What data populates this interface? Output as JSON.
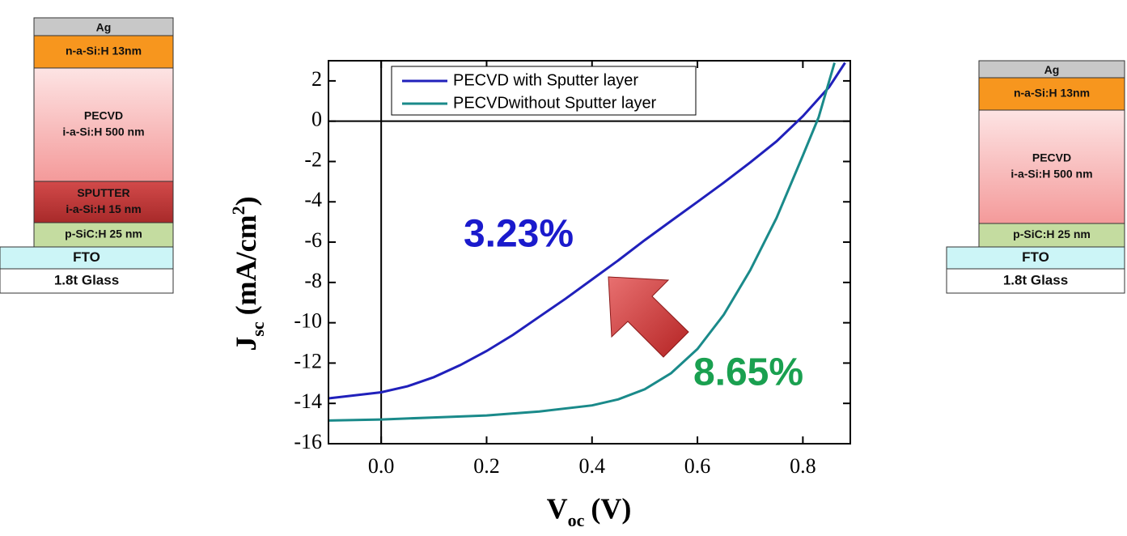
{
  "stacks": [
    {
      "layers": [
        {
          "lines": [
            "Ag"
          ]
        },
        {
          "lines": [
            "n-a-Si:H 13nm"
          ]
        },
        {
          "lines": [
            "PECVD",
            "i-a-Si:H 500 nm"
          ]
        },
        {
          "lines": [
            "SPUTTER",
            "i-a-Si:H  15 nm"
          ]
        },
        {
          "lines": [
            "p-SiC:H 25 nm"
          ]
        },
        {
          "lines": [
            "FTO"
          ]
        },
        {
          "lines": [
            "1.8t Glass"
          ]
        }
      ]
    },
    {
      "layers": [
        {
          "lines": [
            "Ag"
          ]
        },
        {
          "lines": [
            "n-a-Si:H 13nm"
          ]
        },
        {
          "lines": [
            "PECVD",
            "i-a-Si:H 500 nm"
          ]
        },
        {
          "lines": [
            "p-SiC:H 25 nm"
          ]
        },
        {
          "lines": [
            "FTO"
          ]
        },
        {
          "lines": [
            "1.8t Glass"
          ]
        }
      ]
    }
  ],
  "chart_data": {
    "type": "line",
    "x_label": {
      "main": "V",
      "sub": "oc",
      "unit": "(V)"
    },
    "y_label": {
      "main": "J",
      "sub": "sc",
      "unit": "(mA/cm",
      "sup": "2",
      "close": ")"
    },
    "xlim": [
      -0.1,
      0.89
    ],
    "ylim": [
      -16,
      3
    ],
    "xticks": [
      {
        "value": 0,
        "label": "0.0"
      },
      0.2,
      0.4,
      0.6,
      0.8
    ],
    "yticks": [
      -16,
      -14,
      -12,
      -10,
      -8,
      -6,
      -4,
      -2,
      0,
      2
    ],
    "series": [
      {
        "name": "PECVD with Sputter layer",
        "color": "#2020bb",
        "x": [
          -0.1,
          0,
          0.05,
          0.1,
          0.15,
          0.2,
          0.25,
          0.3,
          0.35,
          0.4,
          0.45,
          0.5,
          0.55,
          0.6,
          0.65,
          0.7,
          0.75,
          0.8,
          0.85,
          0.88
        ],
        "values": [
          -13.75,
          -13.45,
          -13.15,
          -12.7,
          -12.1,
          -11.4,
          -10.6,
          -9.7,
          -8.8,
          -7.85,
          -6.9,
          -5.9,
          -4.95,
          -4.0,
          -3.05,
          -2.05,
          -1.0,
          0.25,
          1.7,
          2.9
        ]
      },
      {
        "name": "PECVDwithout Sputter layer",
        "color": "#1a8a8a",
        "x": [
          -0.1,
          0,
          0.1,
          0.2,
          0.3,
          0.4,
          0.45,
          0.5,
          0.55,
          0.6,
          0.65,
          0.7,
          0.75,
          0.8,
          0.83,
          0.86
        ],
        "values": [
          -14.85,
          -14.8,
          -14.7,
          -14.6,
          -14.4,
          -14.1,
          -13.8,
          -13.3,
          -12.5,
          -11.3,
          -9.6,
          -7.4,
          -4.8,
          -1.7,
          0.2,
          2.9
        ]
      }
    ],
    "annotations": [
      {
        "text": "3.23%",
        "color": "#1a1acc"
      },
      {
        "text": "8.65%",
        "color": "#1aa050"
      }
    ]
  }
}
